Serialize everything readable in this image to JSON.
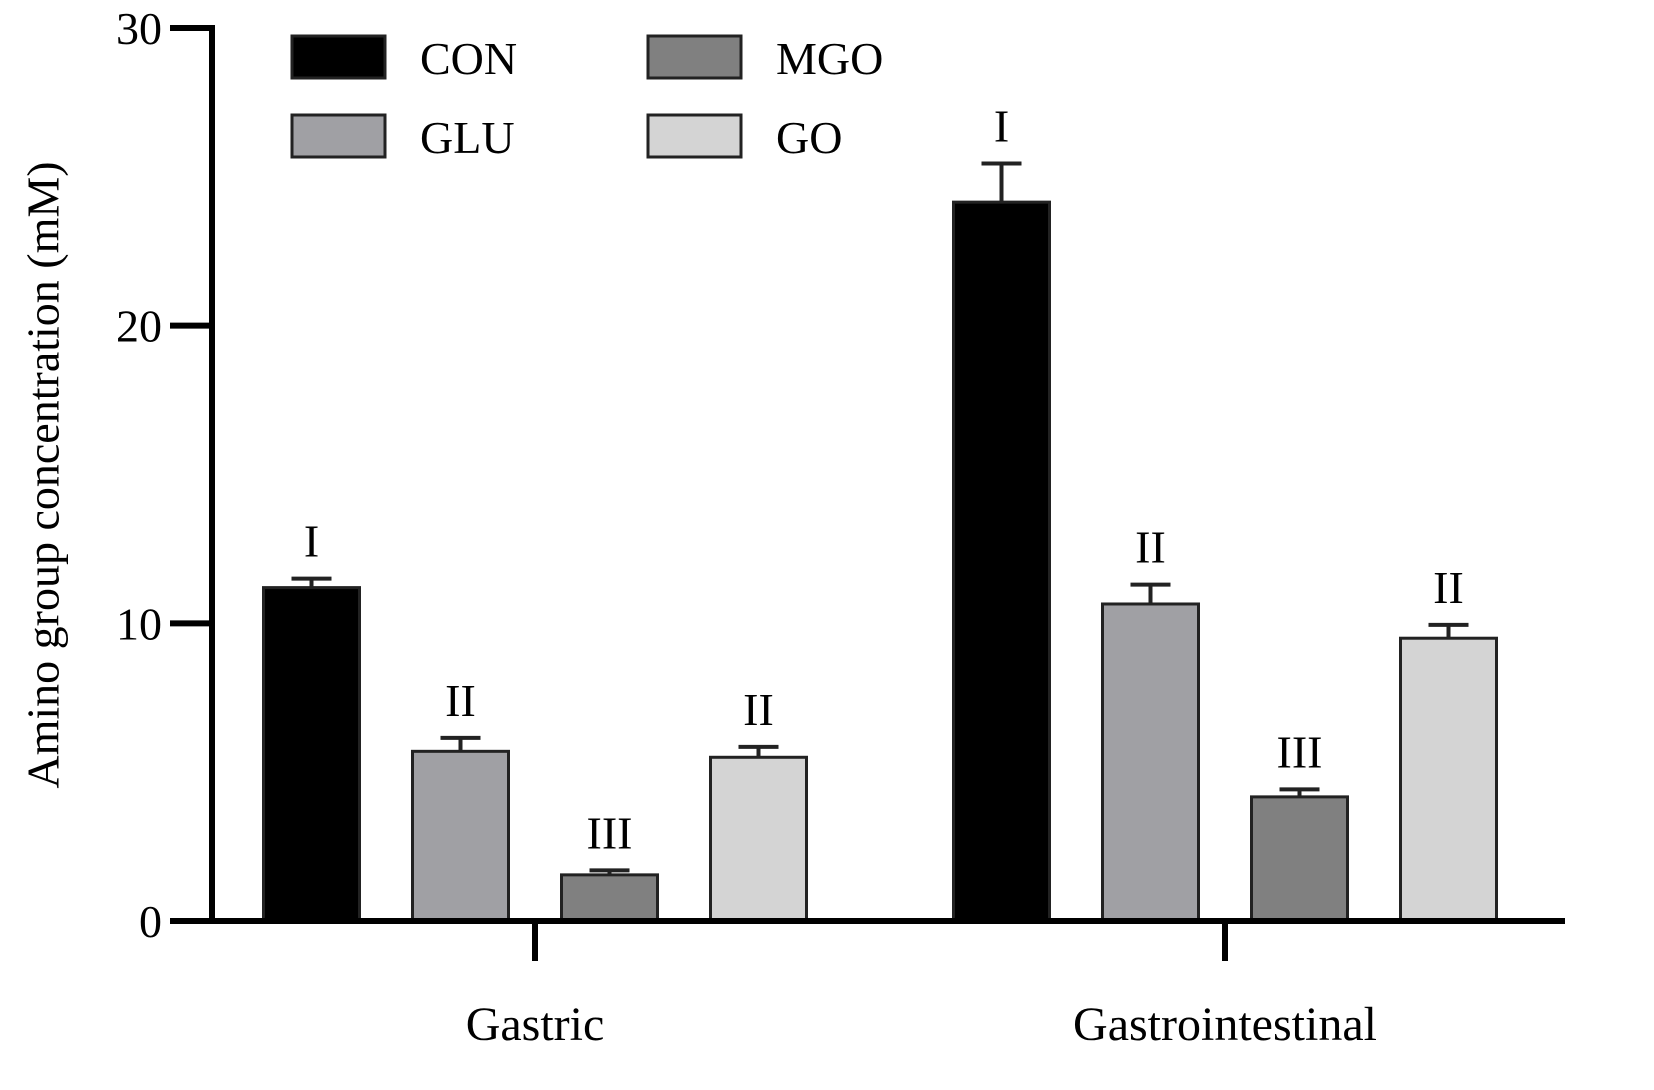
{
  "chart_data": {
    "type": "bar",
    "y_label": "Amino group concentration (mM)",
    "categories": [
      "Gastric",
      "Gastrointestinal"
    ],
    "series": [
      {
        "name": "CON",
        "color": "#000000",
        "values": [
          11.2,
          24.15
        ],
        "errors": [
          0.3,
          1.3
        ],
        "significance": [
          "I",
          "I"
        ]
      },
      {
        "name": "GLU",
        "color": "#a0a0a4",
        "values": [
          5.7,
          10.65
        ],
        "errors": [
          0.45,
          0.65
        ],
        "significance": [
          "II",
          "II"
        ]
      },
      {
        "name": "MGO",
        "color": "#808080",
        "values": [
          1.55,
          4.17
        ],
        "errors": [
          0.15,
          0.25
        ],
        "significance": [
          "III",
          "III"
        ]
      },
      {
        "name": "GO",
        "color": "#d4d4d4",
        "values": [
          5.5,
          9.5
        ],
        "errors": [
          0.35,
          0.45
        ],
        "significance": [
          "II",
          "II"
        ]
      }
    ],
    "ylim": [
      0,
      30
    ],
    "yticks": [
      0,
      10,
      20,
      30
    ],
    "grid": false
  }
}
